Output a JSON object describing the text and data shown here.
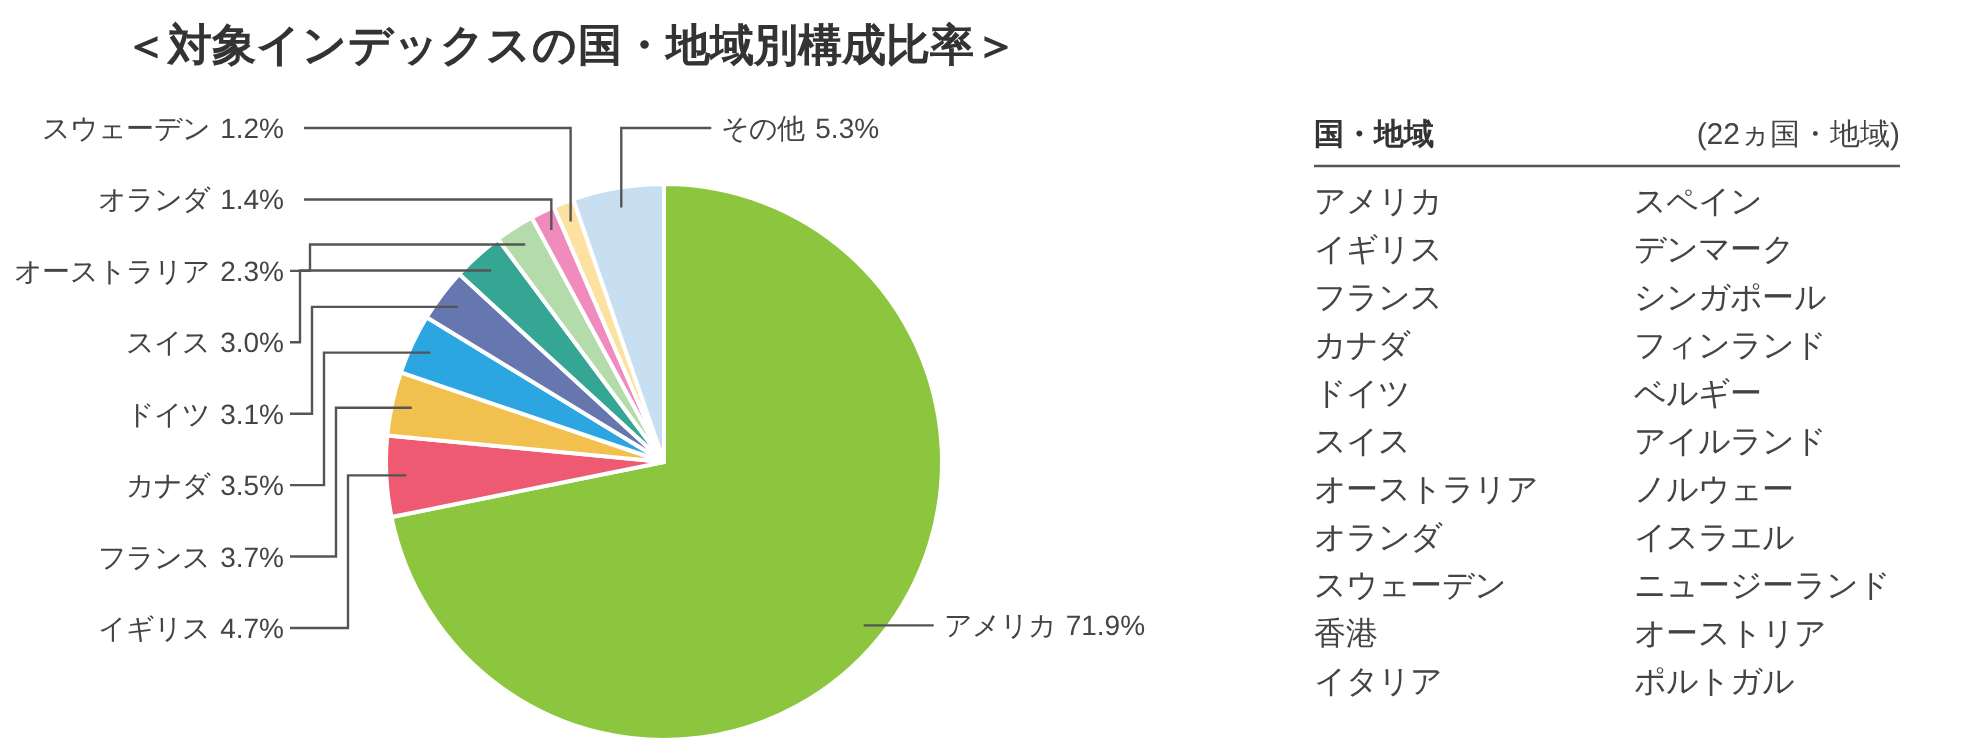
{
  "chart_data": [
    {
      "type": "pie",
      "title": "＜対象インデックスの国・地域別構成比率＞",
      "categories": [
        "アメリカ",
        "イギリス",
        "フランス",
        "カナダ",
        "ドイツ",
        "スイス",
        "オーストラリア",
        "オランダ",
        "スウェーデン",
        "その他"
      ],
      "values": [
        71.9,
        4.7,
        3.7,
        3.5,
        3.1,
        3.0,
        2.3,
        1.4,
        1.2,
        5.3
      ],
      "value_labels": [
        "71.9%",
        "4.7%",
        "3.7%",
        "3.5%",
        "3.1%",
        "3.0%",
        "2.3%",
        "1.4%",
        "1.2%",
        "5.3%"
      ],
      "colors": [
        "#8cc63f",
        "#ee5a72",
        "#f2c04e",
        "#2ca6e0",
        "#6677b0",
        "#35a594",
        "#b3dcaa",
        "#f08cbd",
        "#fde1a0",
        "#c8dff2"
      ]
    },
    {
      "type": "other",
      "title": "国・地域",
      "subtitle": "(22ヵ国・地域)",
      "categories": [
        "アメリカ",
        "イギリス",
        "フランス",
        "カナダ",
        "ドイツ",
        "スイス",
        "オーストラリア",
        "オランダ",
        "スウェーデン",
        "香港",
        "イタリア",
        "スペイン",
        "デンマーク",
        "シンガポール",
        "フィンランド",
        "ベルギー",
        "アイルランド",
        "ノルウェー",
        "イスラエル",
        "ニュージーランド",
        "オーストリア",
        "ポルトガル"
      ]
    }
  ]
}
